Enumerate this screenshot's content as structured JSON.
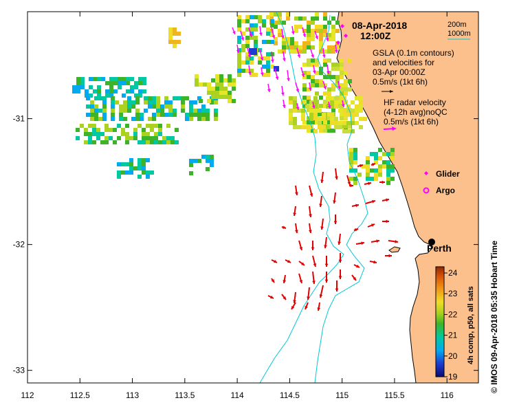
{
  "map": {
    "date": "08-Apr-2018",
    "time": "12:00Z",
    "city": "Perth",
    "x_ticks": [
      "112",
      "112.5",
      "113",
      "113.5",
      "114",
      "114.5",
      "115",
      "115.5",
      "116"
    ],
    "y_ticks": [
      "-31",
      "-32",
      "-33"
    ],
    "lon_range": [
      112,
      116.3
    ],
    "lat_range": [
      -30.15,
      -33.1
    ]
  },
  "legend": {
    "isobath_200": "200m",
    "isobath_1000": "1000m",
    "gsla_line1": "GSLA (0.1m contours)",
    "gsla_line2": "and velocities for",
    "gsla_line3": "03-Apr 00:00Z",
    "gsla_line4": "0.5m/s (1kt 6h)",
    "hf_line1": "HF radar velocity",
    "hf_line2": "(4-12h avg)noQC",
    "hf_line3": "0.5m/s (1kt 6h)",
    "glider": "Glider",
    "argo": "Argo"
  },
  "colorbar": {
    "label": "4h comp, p50, all sats",
    "ticks": [
      "19",
      "20",
      "21",
      "22",
      "23",
      "24"
    ],
    "min": 19,
    "max": 24.3
  },
  "credit": "© IMOS 09-Apr-2018 05:35 Hobart Time",
  "colors": {
    "land": "#FCC08C",
    "isobath": "#00C8D2",
    "gsla_arrow": "#E00000",
    "hf_arrow": "#FF00FF"
  }
}
